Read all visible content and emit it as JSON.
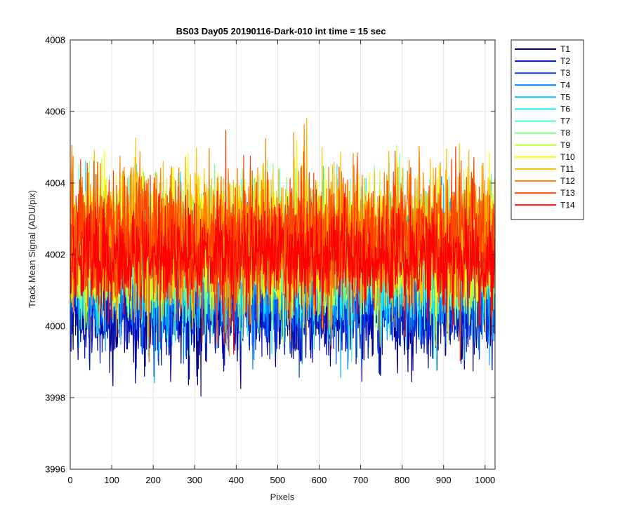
{
  "chart_data": {
    "type": "line",
    "title": "BS03 Day05 20190116-Dark-010 int time = 15 sec",
    "xlabel": "Pixels",
    "ylabel": "Track Mean Signal (ADU/pix)",
    "xlim": [
      0,
      1024
    ],
    "ylim": [
      3996,
      4008
    ],
    "xticks": [
      0,
      100,
      200,
      300,
      400,
      500,
      600,
      700,
      800,
      900,
      1000
    ],
    "yticks": [
      3996,
      3998,
      4000,
      4002,
      4004,
      4006,
      4008
    ],
    "grid": true,
    "legend_position": "outside-right",
    "series": [
      {
        "name": "T1",
        "color": "#00008f",
        "mean": 4000.4,
        "spread": 0.75
      },
      {
        "name": "T2",
        "color": "#0012c8",
        "mean": 4000.7,
        "spread": 0.75
      },
      {
        "name": "T3",
        "color": "#0040f0",
        "mean": 4001.0,
        "spread": 0.75
      },
      {
        "name": "T4",
        "color": "#0078ff",
        "mean": 4001.3,
        "spread": 0.8
      },
      {
        "name": "T5",
        "color": "#00b0ff",
        "mean": 4001.6,
        "spread": 0.85
      },
      {
        "name": "T6",
        "color": "#10e8ff",
        "mean": 4001.9,
        "spread": 0.9
      },
      {
        "name": "T7",
        "color": "#48ffcf",
        "mean": 4002.0,
        "spread": 0.9
      },
      {
        "name": "T8",
        "color": "#80ff80",
        "mean": 4002.1,
        "spread": 0.9
      },
      {
        "name": "T9",
        "color": "#c0ff40",
        "mean": 4002.2,
        "spread": 0.9
      },
      {
        "name": "T10",
        "color": "#ffff00",
        "mean": 4002.3,
        "spread": 0.95
      },
      {
        "name": "T11",
        "color": "#ffc000",
        "mean": 4002.4,
        "spread": 0.95
      },
      {
        "name": "T12",
        "color": "#ff8000",
        "mean": 4002.5,
        "spread": 0.95
      },
      {
        "name": "T13",
        "color": "#ff4000",
        "mean": 4002.4,
        "spread": 0.95
      },
      {
        "name": "T14",
        "color": "#ff0000",
        "mean": 4001.9,
        "spread": 0.7
      }
    ]
  }
}
